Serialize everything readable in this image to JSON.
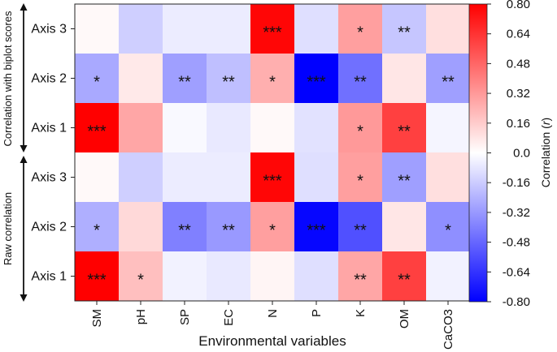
{
  "chart_data": {
    "type": "heatmap",
    "xlabel": "Environmental variables",
    "colorbar_label": "Correlation (",
    "colorbar_label_italic": "r",
    "colorbar_label_close": ")",
    "colorbar_range": [
      -0.8,
      0.8
    ],
    "colorbar_ticks": [
      "0.80",
      "0.64",
      "0.48",
      "0.32",
      "0.16",
      "0.0",
      "-0.16",
      "-0.32",
      "-0.48",
      "-0.64",
      "-0.80"
    ],
    "columns": [
      "SM",
      "pH",
      "SP",
      "EC",
      "N",
      "P",
      "K",
      "OM",
      "CaCO3"
    ],
    "groups": [
      {
        "label": "Correlation with biplot scores",
        "rows": [
          {
            "label": "Axis 3",
            "values": [
              0.02,
              -0.15,
              -0.06,
              -0.06,
              0.78,
              -0.1,
              0.3,
              -0.18,
              0.1
            ],
            "sig": [
              "",
              "",
              "",
              "",
              "***",
              "",
              "*",
              "**",
              ""
            ]
          },
          {
            "label": "Axis 2",
            "values": [
              -0.27,
              0.07,
              -0.3,
              -0.2,
              0.25,
              -0.82,
              -0.45,
              0.08,
              -0.3
            ],
            "sig": [
              "*",
              "",
              "**",
              "**",
              "*",
              "***",
              "**",
              "",
              "**"
            ]
          },
          {
            "label": "Axis 1",
            "values": [
              0.8,
              0.28,
              -0.02,
              -0.07,
              0.02,
              -0.09,
              0.32,
              0.6,
              -0.03
            ],
            "sig": [
              "***",
              "",
              "",
              "",
              "",
              "",
              "*",
              "**",
              ""
            ]
          }
        ]
      },
      {
        "label": "Raw correlation",
        "rows": [
          {
            "label": "Axis 3",
            "values": [
              0.02,
              -0.15,
              -0.06,
              -0.06,
              0.78,
              -0.1,
              0.3,
              -0.3,
              0.1
            ],
            "sig": [
              "",
              "",
              "",
              "",
              "***",
              "",
              "*",
              "**",
              ""
            ]
          },
          {
            "label": "Axis 2",
            "values": [
              -0.25,
              0.12,
              -0.4,
              -0.32,
              0.3,
              -0.78,
              -0.55,
              0.08,
              -0.35
            ],
            "sig": [
              "*",
              "",
              "**",
              "**",
              "*",
              "***",
              "**",
              "",
              "*"
            ]
          },
          {
            "label": "Axis 1",
            "values": [
              0.8,
              0.2,
              -0.04,
              -0.07,
              0.03,
              -0.1,
              0.28,
              0.6,
              -0.04
            ],
            "sig": [
              "***",
              "*",
              "",
              "",
              "",
              "",
              "**",
              "**",
              ""
            ]
          }
        ]
      }
    ],
    "colors": {
      "positive": "#ff0000",
      "negative": "#0000ff",
      "neutral": "#ffffff"
    }
  }
}
